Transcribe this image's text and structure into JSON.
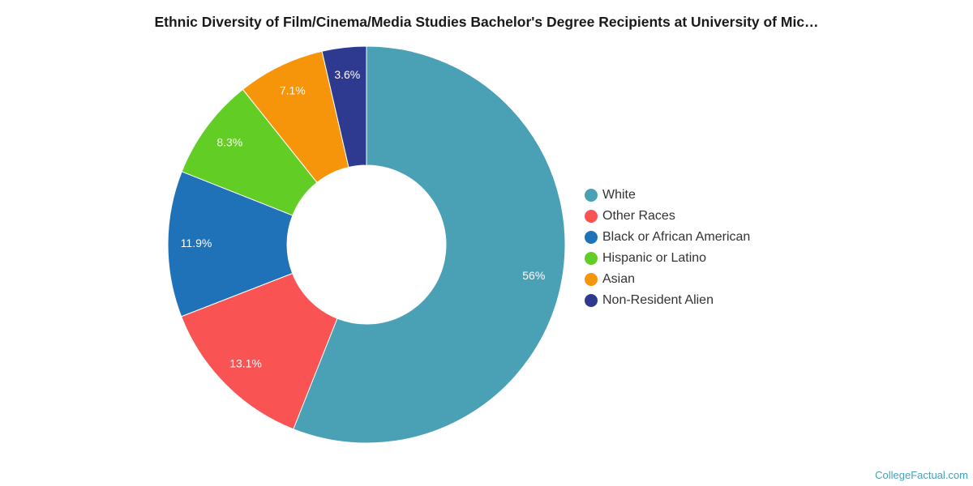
{
  "credit": "CollegeFactual.com",
  "chart_data": {
    "type": "pie",
    "title": "Ethnic Diversity of Film/Cinema/Media Studies Bachelor's Degree Recipients at University of Mic…",
    "donut": true,
    "legend_placement": "right",
    "categories": [
      "White",
      "Other Races",
      "Black or African American",
      "Hispanic or Latino",
      "Asian",
      "Non-Resident Alien"
    ],
    "values": [
      56,
      13.1,
      11.9,
      8.3,
      7.1,
      3.6
    ],
    "labels": [
      "56%",
      "13.1%",
      "11.9%",
      "8.3%",
      "7.1%",
      "3.6%"
    ],
    "colors": [
      "#4aa0b5",
      "#f95353",
      "#1f72b8",
      "#62ce25",
      "#f7950a",
      "#2e3a8f"
    ]
  }
}
